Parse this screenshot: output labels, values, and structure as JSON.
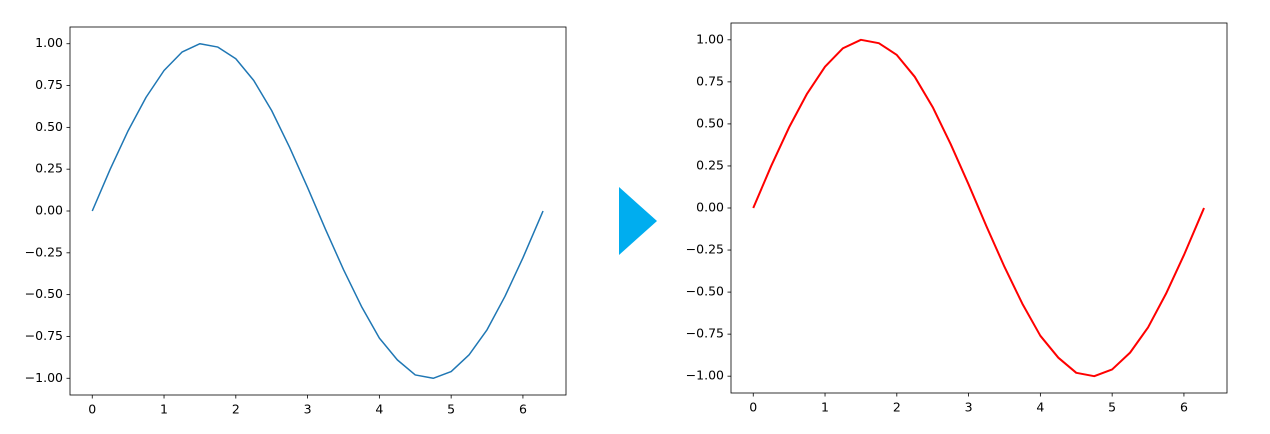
{
  "chart_data": [
    {
      "type": "line",
      "x": [
        0,
        0.25,
        0.5,
        0.75,
        1,
        1.25,
        1.5,
        1.75,
        2,
        2.25,
        2.5,
        2.75,
        3,
        3.25,
        3.5,
        3.75,
        4,
        4.25,
        4.5,
        4.75,
        5,
        5.25,
        5.5,
        5.75,
        6,
        6.25,
        6.28
      ],
      "series": [
        {
          "color": "#1f77b4",
          "line_width": 1.5,
          "values": [
            0,
            0.25,
            0.48,
            0.68,
            0.84,
            0.95,
            1.0,
            0.98,
            0.91,
            0.78,
            0.6,
            0.38,
            0.14,
            -0.11,
            -0.35,
            -0.57,
            -0.76,
            -0.89,
            -0.98,
            -1.0,
            -0.96,
            -0.86,
            -0.71,
            -0.51,
            -0.28,
            -0.03,
            0
          ]
        }
      ],
      "xlim": [
        -0.31,
        6.6
      ],
      "ylim": [
        -1.1,
        1.1
      ],
      "xticks": [
        0,
        1,
        2,
        3,
        4,
        5,
        6
      ],
      "yticks": [
        {
          "value": -1,
          "label": "−1.00"
        },
        {
          "value": -0.75,
          "label": "−0.75"
        },
        {
          "value": -0.5,
          "label": "−0.50"
        },
        {
          "value": -0.25,
          "label": "−0.25"
        },
        {
          "value": 0,
          "label": "0.00"
        },
        {
          "value": 0.25,
          "label": "0.25"
        },
        {
          "value": 0.5,
          "label": "0.50"
        },
        {
          "value": 0.75,
          "label": "0.75"
        },
        {
          "value": 1,
          "label": "1.00"
        }
      ]
    },
    {
      "type": "line",
      "x": [
        0,
        0.25,
        0.5,
        0.75,
        1,
        1.25,
        1.5,
        1.75,
        2,
        2.25,
        2.5,
        2.75,
        3,
        3.25,
        3.5,
        3.75,
        4,
        4.25,
        4.5,
        4.75,
        5,
        5.25,
        5.5,
        5.75,
        6,
        6.25,
        6.28
      ],
      "series": [
        {
          "color": "#ff0000",
          "line_width": 2,
          "values": [
            0,
            0.25,
            0.48,
            0.68,
            0.84,
            0.95,
            1.0,
            0.98,
            0.91,
            0.78,
            0.6,
            0.38,
            0.14,
            -0.11,
            -0.35,
            -0.57,
            -0.76,
            -0.89,
            -0.98,
            -1.0,
            -0.96,
            -0.86,
            -0.71,
            -0.51,
            -0.28,
            -0.03,
            0
          ]
        }
      ],
      "xlim": [
        -0.31,
        6.6
      ],
      "ylim": [
        -1.1,
        1.1
      ],
      "xticks": [
        0,
        1,
        2,
        3,
        4,
        5,
        6
      ],
      "yticks": [
        {
          "value": -1,
          "label": "−1.00"
        },
        {
          "value": -0.75,
          "label": "−0.75"
        },
        {
          "value": -0.5,
          "label": "−0.50"
        },
        {
          "value": -0.25,
          "label": "−0.25"
        },
        {
          "value": 0,
          "label": "0.00"
        },
        {
          "value": 0.25,
          "label": "0.25"
        },
        {
          "value": 0.5,
          "label": "0.50"
        },
        {
          "value": 0.75,
          "label": "0.75"
        },
        {
          "value": 1,
          "label": "1.00"
        }
      ]
    }
  ]
}
